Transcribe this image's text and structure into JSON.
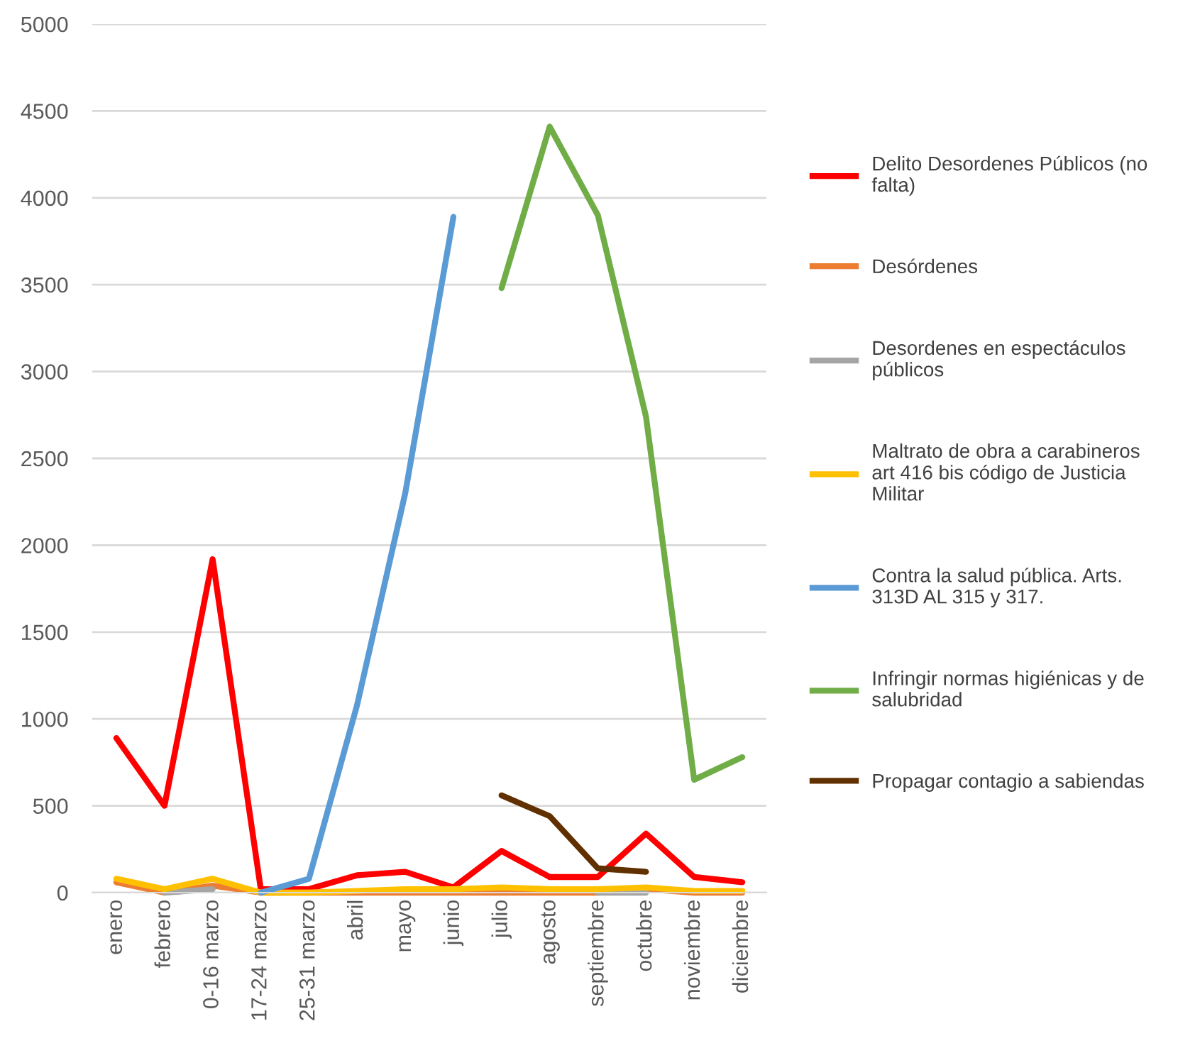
{
  "chart_data": {
    "type": "line",
    "categories": [
      "enero",
      "febrero",
      "0-16 marzo",
      "17-24 marzo",
      "25-31 marzo",
      "abril",
      "mayo",
      "junio",
      "julio",
      "agosto",
      "septiembre",
      "octubre",
      "noviembre",
      "diciembre"
    ],
    "series": [
      {
        "name": "Delito Desordenes Públicos (no\nfalta)",
        "color": "#ff0000",
        "values": [
          890,
          500,
          1920,
          20,
          20,
          100,
          120,
          30,
          240,
          90,
          90,
          340,
          90,
          60
        ]
      },
      {
        "name": "Desórdenes",
        "color": "#ed7d31",
        "values": [
          60,
          0,
          40,
          0,
          0,
          0,
          0,
          0,
          0,
          0,
          0,
          20,
          0,
          0
        ]
      },
      {
        "name": "Desordenes en espectáculos\npúblicos",
        "color": "#a5a5a5",
        "values": [
          null,
          0,
          20,
          null,
          null,
          null,
          null,
          null,
          null,
          null,
          0,
          0,
          null,
          null
        ]
      },
      {
        "name": "Maltrato de obra a carabineros\nart 416 bis código de Justicia\nMilitar",
        "color": "#ffc000",
        "values": [
          80,
          20,
          80,
          0,
          0,
          10,
          20,
          20,
          30,
          20,
          20,
          30,
          10,
          10
        ]
      },
      {
        "name": "Contra la salud pública. Arts.\n313D AL 315 y 317.",
        "color": "#5b9bd5",
        "values": [
          null,
          null,
          null,
          0,
          80,
          1080,
          2300,
          3890,
          null,
          null,
          null,
          null,
          null,
          null
        ]
      },
      {
        "name": "Infringir normas higiénicas y de\nsalubridad",
        "color": "#70ad47",
        "values": [
          null,
          null,
          null,
          null,
          null,
          null,
          null,
          null,
          3480,
          4410,
          3900,
          2740,
          650,
          780
        ]
      },
      {
        "name": "Propagar contagio a sabiendas",
        "color": "#603000",
        "values": [
          null,
          null,
          null,
          null,
          null,
          null,
          null,
          null,
          560,
          440,
          140,
          120,
          null,
          null
        ]
      }
    ],
    "ylim": [
      0,
      5000
    ],
    "yticks": [
      0,
      500,
      1000,
      1500,
      2000,
      2500,
      3000,
      3500,
      4000,
      4500,
      5000
    ],
    "grid": "y",
    "legend": "right",
    "marker": "none",
    "line_style": "solid"
  }
}
